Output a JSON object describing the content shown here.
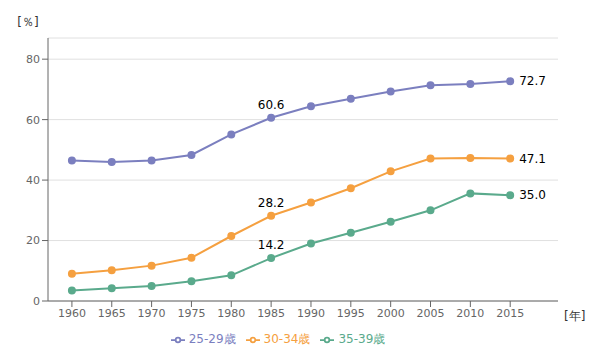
{
  "chart_data": {
    "type": "line",
    "x": [
      1960,
      1965,
      1970,
      1975,
      1980,
      1985,
      1990,
      1995,
      2000,
      2005,
      2010,
      2015
    ],
    "series": [
      {
        "name": "25-29歳",
        "color": "#7b7fbf",
        "marker": "circle",
        "values": [
          46.5,
          46.0,
          46.5,
          48.3,
          55.1,
          60.6,
          64.4,
          66.9,
          69.3,
          71.4,
          71.8,
          72.7
        ]
      },
      {
        "name": "30-34歳",
        "color": "#f5a040",
        "marker": "circle",
        "values": [
          9.0,
          10.2,
          11.7,
          14.3,
          21.5,
          28.2,
          32.6,
          37.3,
          42.9,
          47.1,
          47.3,
          47.1
        ]
      },
      {
        "name": "35-39歳",
        "color": "#5aaa8c",
        "marker": "circle",
        "values": [
          3.5,
          4.2,
          5.0,
          6.5,
          8.5,
          14.2,
          19.0,
          22.6,
          26.2,
          30.0,
          35.6,
          35.0
        ]
      }
    ],
    "xlabel": "[年]",
    "ylabel": "[％]",
    "xlim": [
      1957,
      2021
    ],
    "xticks": [
      1960,
      1965,
      1970,
      1975,
      1980,
      1985,
      1990,
      1995,
      2000,
      2005,
      2010,
      2015
    ],
    "ylim": [
      0,
      87
    ],
    "yticks": [
      0,
      20,
      40,
      60,
      80
    ],
    "annotations": [
      {
        "text": "60.6",
        "x": 1985,
        "y": 60.6
      },
      {
        "text": "28.2",
        "x": 1985,
        "y": 28.2
      },
      {
        "text": "14.2",
        "x": 1985,
        "y": 14.2
      },
      {
        "text": "72.7",
        "x": 2015,
        "y": 72.7
      },
      {
        "text": "47.1",
        "x": 2015,
        "y": 47.1
      },
      {
        "text": "35.0",
        "x": 2015,
        "y": 35.0
      }
    ],
    "grid": true,
    "legend": "bottom"
  }
}
